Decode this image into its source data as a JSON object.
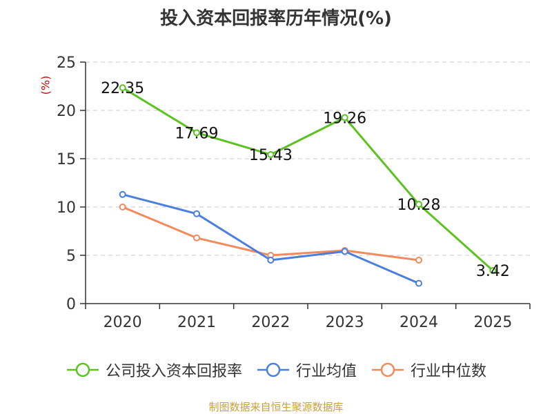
{
  "title": "投入资本回报率历年情况(%)",
  "unit_label": "(%)",
  "source": "制图数据来自恒生聚源数据库",
  "colors": {
    "company": "#5bc21f",
    "industry_avg": "#4a7fe0",
    "industry_median": "#f28a5b",
    "grid": "#c8c8c8",
    "axis": "#333333"
  },
  "chart_data": {
    "type": "line",
    "title": "投入资本回报率历年情况(%)",
    "ylabel": "(%)",
    "xlabel": "",
    "categories": [
      "2020",
      "2021",
      "2022",
      "2023",
      "2024",
      "2025"
    ],
    "ylim": [
      0,
      25
    ],
    "yticks": [
      0,
      5,
      10,
      15,
      20,
      25
    ],
    "grid": true,
    "legend_position": "bottom",
    "series": [
      {
        "name": "公司投入资本回报率",
        "color": "#5bc21f",
        "values": [
          22.35,
          17.69,
          15.43,
          19.26,
          10.28,
          3.42
        ],
        "labels": [
          "22.35",
          "17.69",
          "15.43",
          "19.26",
          "10.28",
          "3.42"
        ]
      },
      {
        "name": "行业均值",
        "color": "#4a7fe0",
        "values": [
          11.3,
          9.3,
          4.5,
          5.4,
          2.1,
          null
        ]
      },
      {
        "name": "行业中位数",
        "color": "#f28a5b",
        "values": [
          10.0,
          6.8,
          5.0,
          5.5,
          4.5,
          null
        ]
      }
    ]
  }
}
